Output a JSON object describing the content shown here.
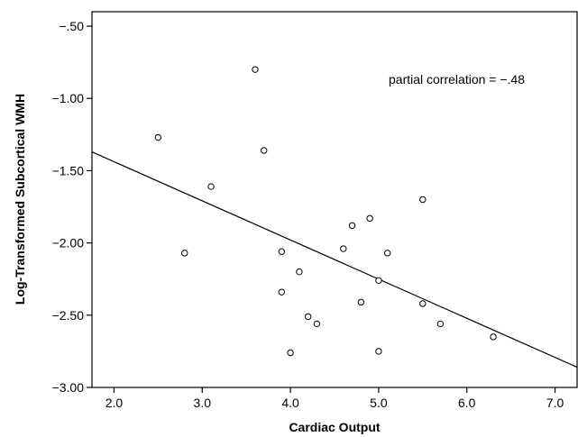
{
  "chart_data": {
    "type": "scatter",
    "xlabel": "Cardiac Output",
    "ylabel": "Log-Transformed Subcortical WMH",
    "xlim": [
      1.75,
      7.25
    ],
    "ylim": [
      -3.0,
      -0.4
    ],
    "xticks": [
      2.0,
      3.0,
      4.0,
      5.0,
      6.0,
      7.0
    ],
    "xtick_labels": [
      "2.0",
      "3.0",
      "4.0",
      "5.0",
      "6.0",
      "7.0"
    ],
    "yticks": [
      -0.5,
      -1.0,
      -1.5,
      -2.0,
      -2.5,
      -3.0
    ],
    "ytick_labels": [
      "−.50",
      "−1.00",
      "−1.50",
      "−2.00",
      "−2.50",
      "−3.00"
    ],
    "annotation": "partial correlation = −.48",
    "grid": false,
    "points": [
      {
        "x": 2.5,
        "y": -1.27
      },
      {
        "x": 2.8,
        "y": -2.07
      },
      {
        "x": 3.1,
        "y": -1.61
      },
      {
        "x": 3.6,
        "y": -0.8
      },
      {
        "x": 3.7,
        "y": -1.36
      },
      {
        "x": 3.9,
        "y": -2.06
      },
      {
        "x": 3.9,
        "y": -2.34
      },
      {
        "x": 4.0,
        "y": -2.76
      },
      {
        "x": 4.1,
        "y": -2.2
      },
      {
        "x": 4.2,
        "y": -2.51
      },
      {
        "x": 4.3,
        "y": -2.56
      },
      {
        "x": 4.6,
        "y": -2.04
      },
      {
        "x": 4.7,
        "y": -1.88
      },
      {
        "x": 4.8,
        "y": -2.41
      },
      {
        "x": 4.9,
        "y": -1.83
      },
      {
        "x": 5.0,
        "y": -2.26
      },
      {
        "x": 5.0,
        "y": -2.75
      },
      {
        "x": 5.1,
        "y": -2.07
      },
      {
        "x": 5.5,
        "y": -1.7
      },
      {
        "x": 5.5,
        "y": -2.42
      },
      {
        "x": 5.7,
        "y": -2.56
      },
      {
        "x": 6.3,
        "y": -2.65
      }
    ],
    "fit_line": {
      "x": [
        1.75,
        7.25
      ],
      "y": [
        -1.37,
        -2.86
      ]
    }
  }
}
